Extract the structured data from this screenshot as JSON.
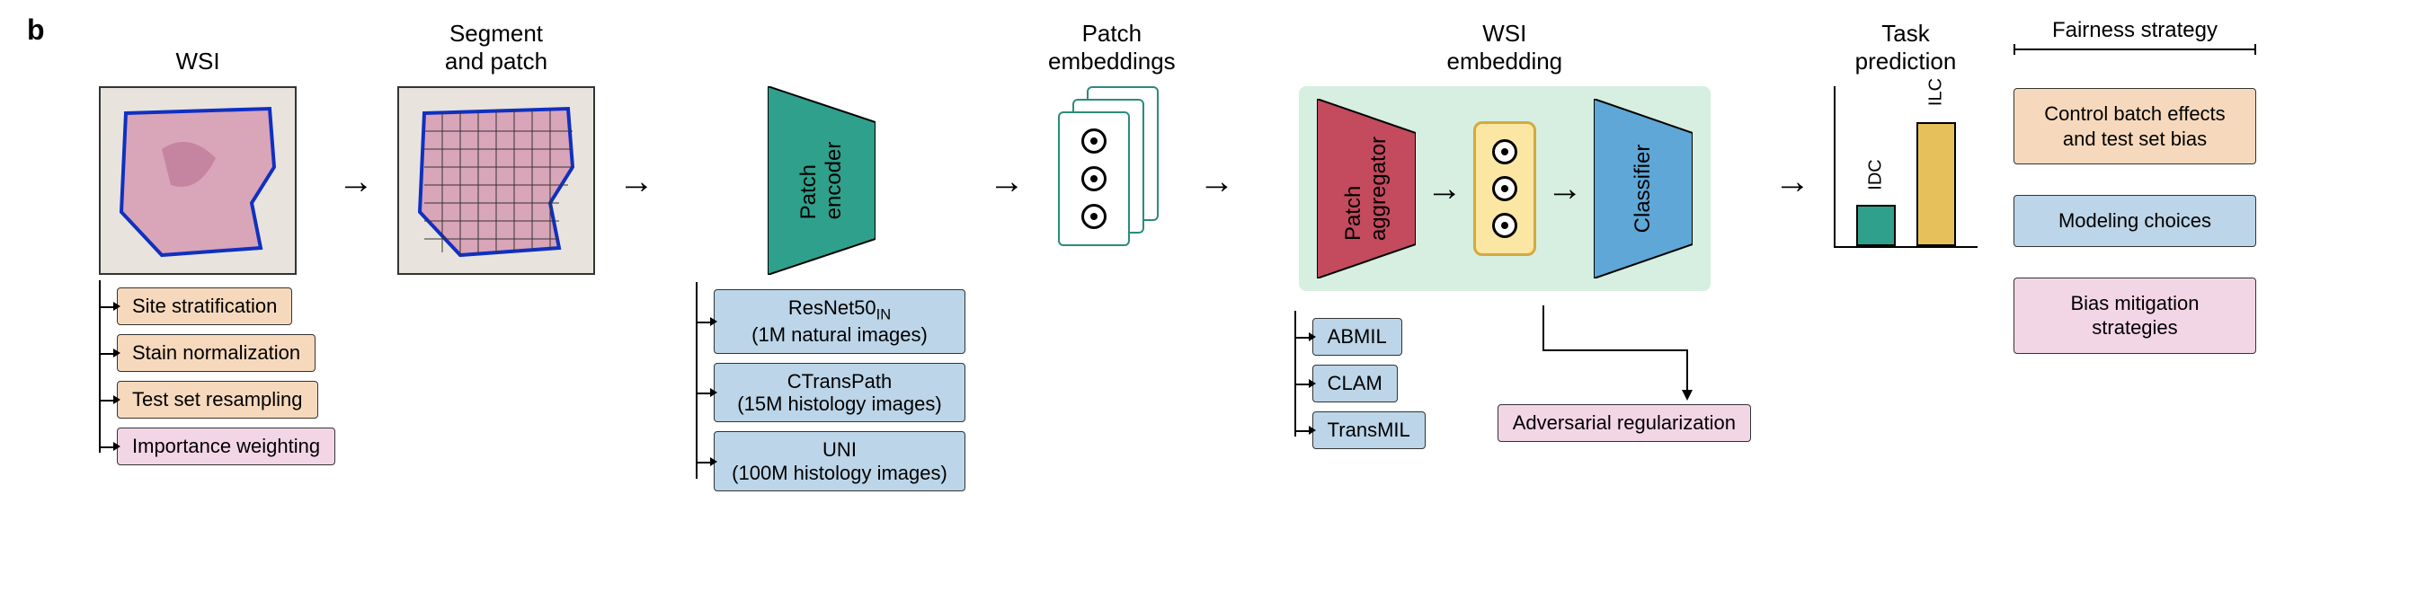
{
  "panel_label": "b",
  "stages": {
    "wsi": "WSI",
    "segment": "Segment\nand patch",
    "patch_emb": "Patch\nembeddings",
    "wsi_emb": "WSI\nembedding",
    "task": "Task\nprediction"
  },
  "wsi_branches": [
    {
      "label": "Site stratification",
      "style": "peach"
    },
    {
      "label": "Stain normalization",
      "style": "peach"
    },
    {
      "label": "Test set resampling",
      "style": "peach"
    },
    {
      "label": "Importance weighting",
      "style": "pink"
    }
  ],
  "encoder": {
    "label": "Patch\nencoder",
    "fill": "#2fa08b",
    "options": [
      {
        "line1": "ResNet50",
        "sub": "IN",
        "line2": "(1M natural images)"
      },
      {
        "line1": "CTransPath",
        "sub": "",
        "line2": "(15M histology images)"
      },
      {
        "line1": "UNI",
        "sub": "",
        "line2": "(100M histology images)"
      }
    ]
  },
  "aggregator": {
    "label": "Patch\naggregator",
    "fill": "#c44a5e",
    "options": [
      "ABMIL",
      "CLAM",
      "TransMIL"
    ]
  },
  "classifier": {
    "label": "Classifier",
    "fill": "#5fa7d6"
  },
  "adv_reg": {
    "label": "Adversarial regularization",
    "style": "pink"
  },
  "task_bars": [
    {
      "label": "IDC",
      "height": 46,
      "color": "#2fa08b"
    },
    {
      "label": "ILC",
      "height": 138,
      "color": "#e6c05a"
    }
  ],
  "legend": {
    "title": "Fairness strategy",
    "items": [
      {
        "label": "Control batch effects and test set bias",
        "style": "peach"
      },
      {
        "label": "Modeling choices",
        "style": "blue"
      },
      {
        "label": "Bias mitigation strategies",
        "style": "pink"
      }
    ]
  },
  "colors": {
    "peach": "#f6d9bc",
    "blue": "#bcd5e8",
    "pink": "#f3d6e6",
    "highlight": "#d6efe0"
  }
}
